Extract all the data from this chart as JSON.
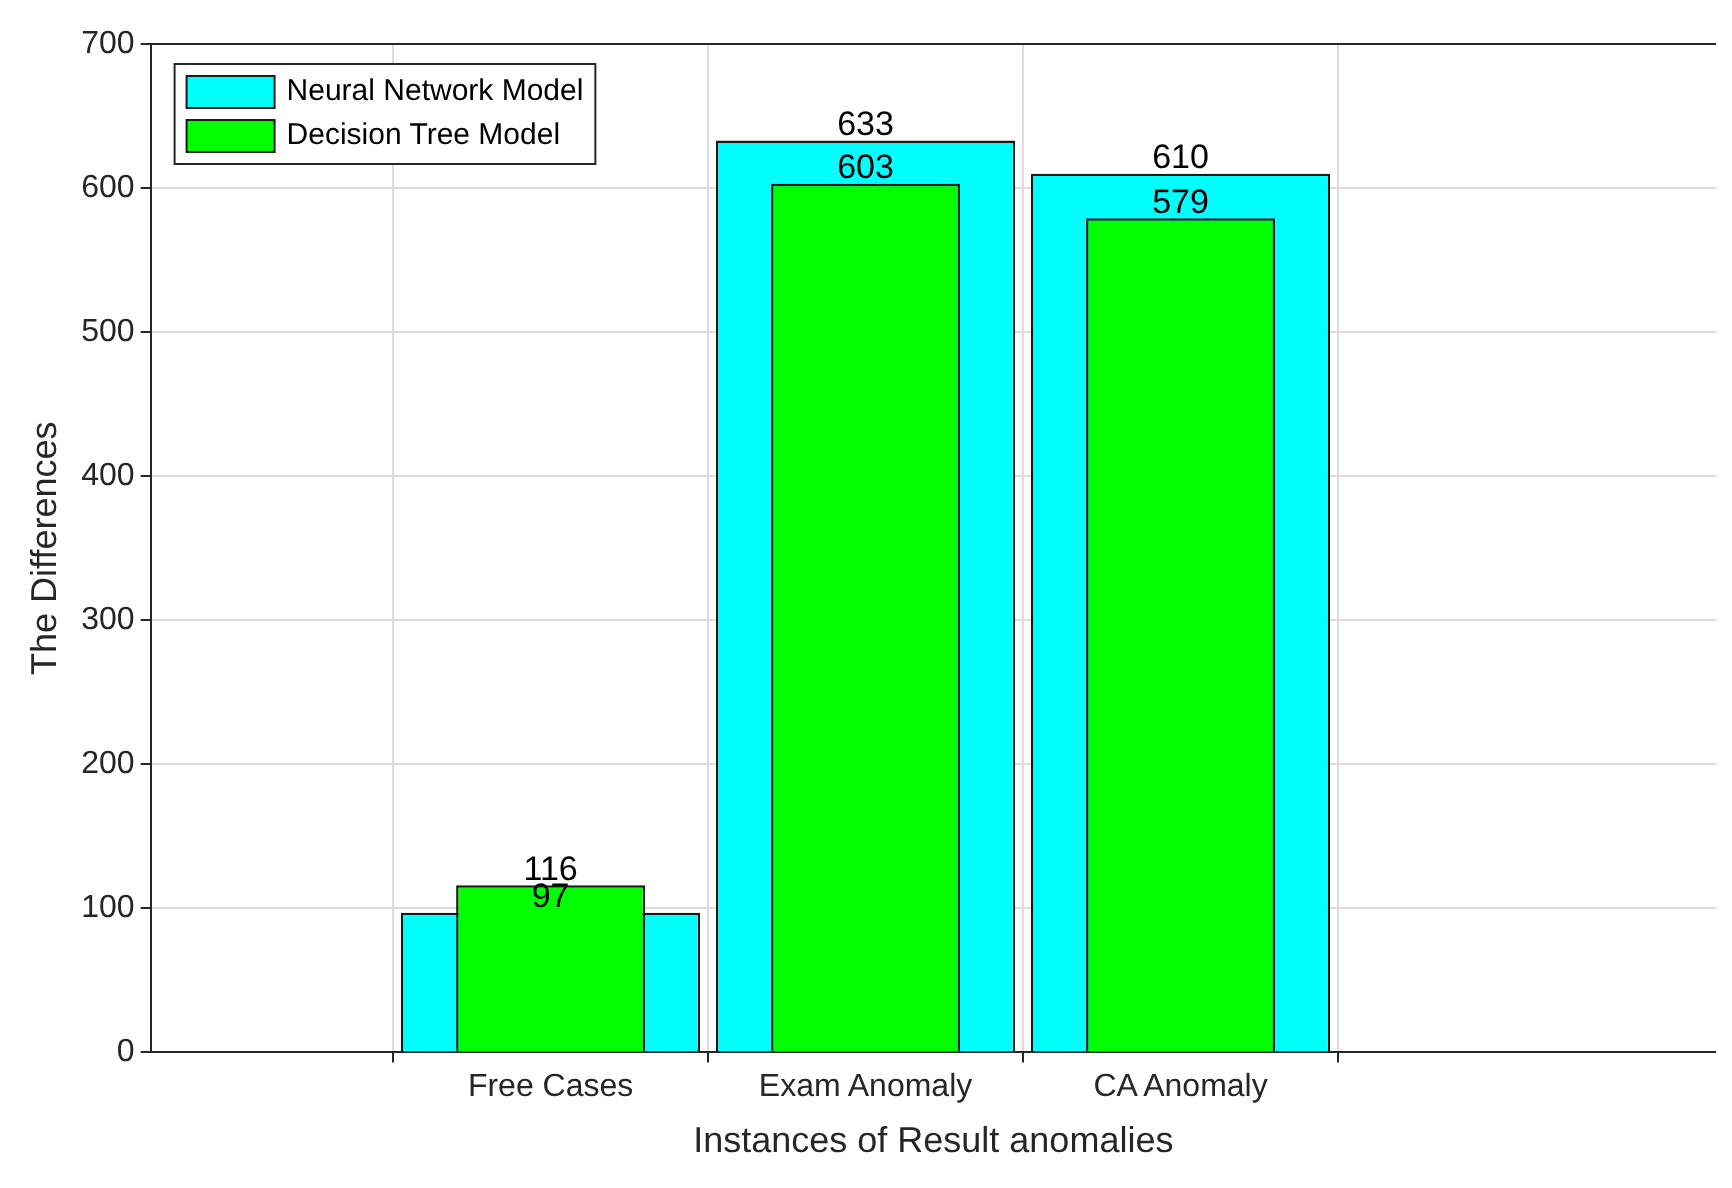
{
  "chart_data": {
    "type": "bar",
    "xlabel": "Instances of Result anomalies",
    "ylabel": "The Differences",
    "categories": [
      "Free Cases",
      "Exam Anomaly",
      "CA Anomaly"
    ],
    "series": [
      {
        "name": "Neural Network Model",
        "color": "#00ffff",
        "values": [
          97,
          633,
          610
        ]
      },
      {
        "name": "Decision Tree Model",
        "color": "#00ff00",
        "values": [
          116,
          603,
          579
        ]
      }
    ],
    "ylim": [
      0,
      700
    ],
    "yticks": [
      0,
      100,
      200,
      300,
      400,
      500,
      600,
      700
    ],
    "grid": true,
    "legend": "top left",
    "data_labels": true
  }
}
